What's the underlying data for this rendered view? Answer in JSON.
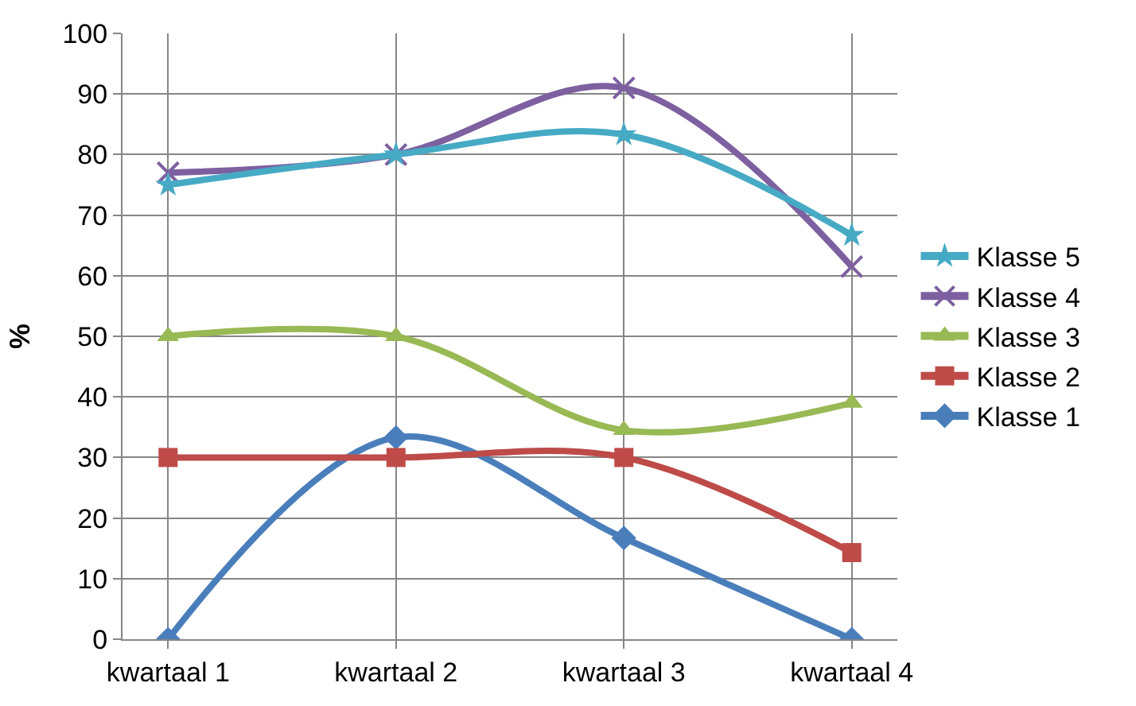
{
  "chart_data": {
    "type": "line",
    "ylabel": "%",
    "categories": [
      "kwartaal 1",
      "kwartaal 2",
      "kwartaal 3",
      "kwartaal 4"
    ],
    "series": [
      {
        "name": "Klasse 1",
        "color": "#4a7ebb",
        "marker": "diamond",
        "values": [
          0,
          33.3,
          16.7,
          0
        ]
      },
      {
        "name": "Klasse 2",
        "color": "#be4b48",
        "marker": "square",
        "values": [
          30,
          30,
          30,
          14.3
        ]
      },
      {
        "name": "Klasse 3",
        "color": "#98b954",
        "marker": "triangle",
        "values": [
          50,
          50,
          34.5,
          39
        ]
      },
      {
        "name": "Klasse 4",
        "color": "#7d60a0",
        "marker": "cross",
        "values": [
          77,
          80,
          91,
          61.5
        ]
      },
      {
        "name": "Klasse 5",
        "color": "#46aac5",
        "marker": "star",
        "values": [
          75,
          80,
          83.3,
          66.7
        ]
      }
    ],
    "ylim": [
      0,
      100
    ],
    "yticks": [
      0,
      10,
      20,
      30,
      40,
      50,
      60,
      70,
      80,
      90,
      100
    ],
    "grid": true,
    "legend": "right",
    "line_style": "solid"
  }
}
